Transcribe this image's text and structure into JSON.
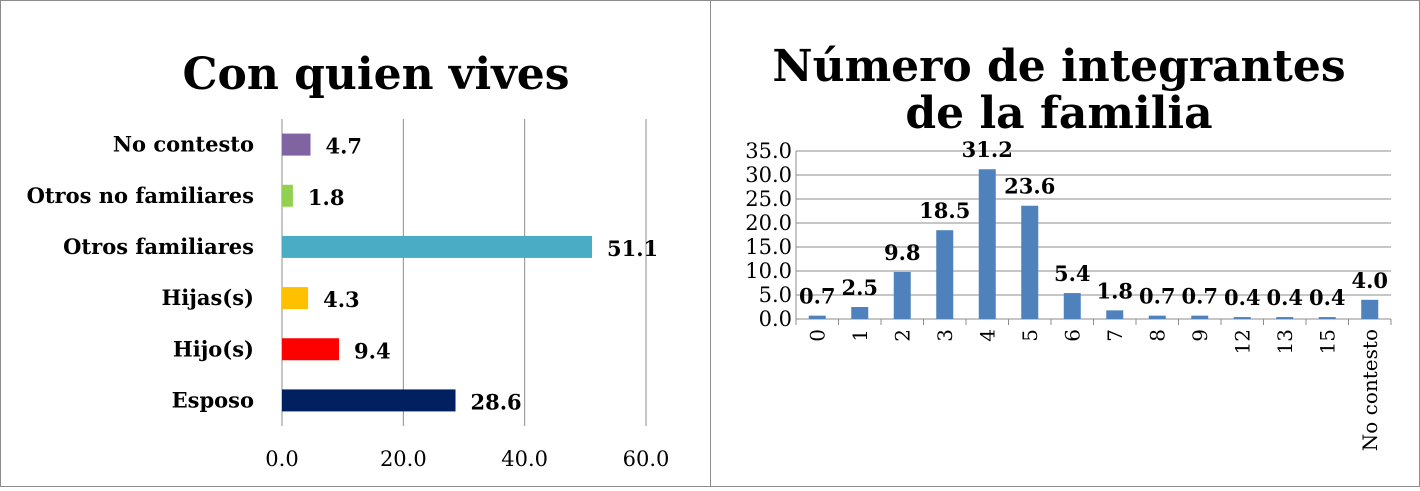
{
  "chart_data": [
    {
      "type": "bar",
      "orientation": "horizontal",
      "title": "Con quien vives",
      "categories": [
        "No contesto",
        "Otros no familiares",
        "Otros familiares",
        "Hijas(s)",
        "Hijo(s)",
        "Esposo"
      ],
      "values": [
        4.7,
        1.8,
        51.1,
        4.3,
        9.4,
        28.6
      ],
      "value_labels": [
        "4.7",
        "1.8",
        "51.1",
        "4.3",
        "9.4",
        "28.6"
      ],
      "colors": [
        "#8064a2",
        "#92d050",
        "#4bacc6",
        "#ffc000",
        "#ff0000",
        "#002060"
      ],
      "xlim": [
        0,
        60
      ],
      "x_ticks": [
        "0.0",
        "20.0",
        "40.0",
        "60.0"
      ],
      "grid": true,
      "legend": "none"
    },
    {
      "type": "bar",
      "orientation": "vertical",
      "title_lines": [
        "Número de integrantes",
        "de la familia"
      ],
      "categories": [
        "0",
        "1",
        "2",
        "3",
        "4",
        "5",
        "6",
        "7",
        "8",
        "9",
        "12",
        "13",
        "15",
        "No contesto"
      ],
      "values": [
        0.7,
        2.5,
        9.8,
        18.5,
        31.2,
        23.6,
        5.4,
        1.8,
        0.7,
        0.7,
        0.4,
        0.4,
        0.4,
        4.0
      ],
      "value_labels": [
        "0.7",
        "2.5",
        "9.8",
        "18.5",
        "31.2",
        "23.6",
        "5.4",
        "1.8",
        "0.7",
        "0.7",
        "0.4",
        "0.4",
        "0.4",
        "4.0"
      ],
      "color": "#4f81bd",
      "ylim": [
        0,
        35
      ],
      "y_ticks": [
        "0.0",
        "5.0",
        "10.0",
        "15.0",
        "20.0",
        "25.0",
        "30.0",
        "35.0"
      ],
      "grid": true,
      "legend": "none"
    }
  ]
}
